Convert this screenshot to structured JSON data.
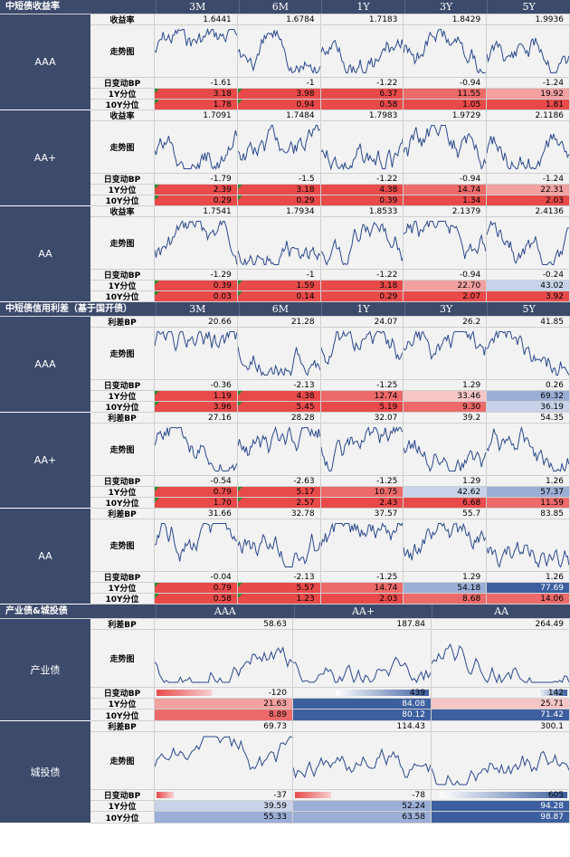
{
  "sections": [
    {
      "title": "中短债收益率",
      "cols": [
        "3M",
        "6M",
        "1Y",
        "3Y",
        "5Y"
      ],
      "blocks": [
        {
          "name": "AAA",
          "rows": [
            {
              "label": "收益率",
              "values": [
                "1.6441",
                "1.6784",
                "1.7183",
                "1.8429",
                "1.9936"
              ]
            },
            {
              "label": "走势图"
            },
            {
              "label": "日变动BP",
              "values": [
                "-1.61",
                "-1",
                "-1.22",
                "-0.94",
                "-1.24"
              ]
            },
            {
              "label": "1Y分位",
              "values": [
                "3.18",
                "3.98",
                "6.37",
                "11.55",
                "19.92"
              ]
            },
            {
              "label": "10Y分位",
              "values": [
                "1.78",
                "0.94",
                "0.58",
                "1.05",
                "1.81"
              ]
            }
          ]
        },
        {
          "name": "AA+",
          "rows": [
            {
              "label": "收益率",
              "values": [
                "1.7091",
                "1.7484",
                "1.7983",
                "1.9729",
                "2.1186"
              ]
            },
            {
              "label": "走势图"
            },
            {
              "label": "日变动BP",
              "values": [
                "-1.79",
                "-1.5",
                "-1.22",
                "-0.94",
                "-1.24"
              ]
            },
            {
              "label": "1Y分位",
              "values": [
                "2.39",
                "3.18",
                "4.38",
                "14.74",
                "22.31"
              ]
            },
            {
              "label": "10Y分位",
              "values": [
                "0.29",
                "0.29",
                "0.39",
                "1.34",
                "2.03"
              ]
            }
          ]
        },
        {
          "name": "AA",
          "rows": [
            {
              "label": "收益率",
              "values": [
                "1.7541",
                "1.7934",
                "1.8533",
                "2.1379",
                "2.4136"
              ]
            },
            {
              "label": "走势图"
            },
            {
              "label": "日变动BP",
              "values": [
                "-1.29",
                "-1",
                "-1.22",
                "-0.94",
                "-0.24"
              ]
            },
            {
              "label": "1Y分位",
              "values": [
                "0.39",
                "1.59",
                "3.18",
                "22.70",
                "43.02"
              ]
            },
            {
              "label": "10Y分位",
              "values": [
                "0.03",
                "0.14",
                "0.29",
                "2.07",
                "3.92"
              ]
            }
          ]
        }
      ]
    },
    {
      "title": "中短债信用利差（基于国开债）",
      "cols": [
        "3M",
        "6M",
        "1Y",
        "3Y",
        "5Y"
      ],
      "blocks": [
        {
          "name": "AAA",
          "rows": [
            {
              "label": "利差BP",
              "values": [
                "20.66",
                "21.28",
                "24.07",
                "26.2",
                "41.85"
              ]
            },
            {
              "label": "走势图"
            },
            {
              "label": "日变动BP",
              "values": [
                "-0.36",
                "-2.13",
                "-1.25",
                "1.29",
                "0.26"
              ]
            },
            {
              "label": "1Y分位",
              "values": [
                "1.19",
                "4.38",
                "12.74",
                "33.46",
                "69.32"
              ]
            },
            {
              "label": "10Y分位",
              "values": [
                "3.96",
                "5.45",
                "5.19",
                "9.30",
                "36.19"
              ]
            }
          ]
        },
        {
          "name": "AA+",
          "rows": [
            {
              "label": "利差BP",
              "values": [
                "27.16",
                "28.28",
                "32.07",
                "39.2",
                "54.35"
              ]
            },
            {
              "label": "走势图"
            },
            {
              "label": "日变动BP",
              "values": [
                "-0.54",
                "-2.63",
                "-1.25",
                "1.29",
                "1.26"
              ]
            },
            {
              "label": "1Y分位",
              "values": [
                "0.79",
                "5.17",
                "10.75",
                "42.62",
                "57.37"
              ]
            },
            {
              "label": "10Y分位",
              "values": [
                "1.70",
                "2.57",
                "2.43",
                "6.68",
                "11.59"
              ]
            }
          ]
        },
        {
          "name": "AA",
          "rows": [
            {
              "label": "利差BP",
              "values": [
                "31.66",
                "32.78",
                "37.57",
                "55.7",
                "83.85"
              ]
            },
            {
              "label": "走势图"
            },
            {
              "label": "日变动BP",
              "values": [
                "-0.04",
                "-2.13",
                "-1.25",
                "1.29",
                "1.26"
              ]
            },
            {
              "label": "1Y分位",
              "values": [
                "0.79",
                "5.57",
                "14.74",
                "54.18",
                "77.69"
              ]
            },
            {
              "label": "10Y分位",
              "values": [
                "0.58",
                "1.23",
                "2.03",
                "8.68",
                "14.06"
              ]
            }
          ]
        }
      ]
    },
    {
      "title": "产业债&城投债",
      "cols": [
        "AAA",
        "AA+",
        "AA"
      ],
      "blocks": [
        {
          "name": "产业债",
          "rows": [
            {
              "label": "利差BP",
              "values": [
                "58.63",
                "187.84",
                "264.49"
              ]
            },
            {
              "label": "走势图"
            },
            {
              "label": "日变动BP",
              "values": [
                "-120",
                "439",
                "142"
              ]
            },
            {
              "label": "1Y分位",
              "values": [
                "21.63",
                "84.08",
                "25.71"
              ]
            },
            {
              "label": "10Y分位",
              "values": [
                "8.89",
                "80.12",
                "71.42"
              ]
            }
          ]
        },
        {
          "name": "城投债",
          "rows": [
            {
              "label": "利差BP",
              "values": [
                "69.73",
                "114.43",
                "300.1"
              ]
            },
            {
              "label": "走势图"
            },
            {
              "label": "日变动BP",
              "values": [
                "-37",
                "-78",
                "605"
              ]
            },
            {
              "label": "1Y分位",
              "values": [
                "39.59",
                "52.24",
                "94.28"
              ]
            },
            {
              "label": "10Y分位",
              "values": [
                "55.33",
                "63.58",
                "98.87"
              ]
            }
          ]
        }
      ]
    }
  ]
}
